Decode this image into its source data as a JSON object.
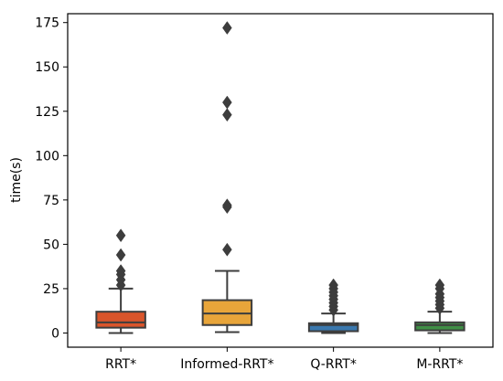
{
  "chart_data": {
    "type": "box",
    "title": "",
    "xlabel": "",
    "ylabel": "time(s)",
    "ylim": [
      -8,
      180
    ],
    "yticks": [
      0,
      25,
      50,
      75,
      100,
      125,
      150,
      175
    ],
    "grid": false,
    "legend": "none",
    "categories": [
      "RRT*",
      "Informed-RRT*",
      "Q-RRT*",
      "M-RRT*"
    ],
    "boxes": [
      {
        "category": "RRT*",
        "color": "#d9552b",
        "whisker_low": 0,
        "q1": 3,
        "median": 6,
        "q3": 12,
        "whisker_high": 25,
        "outliers": [
          27,
          30,
          33,
          35,
          44,
          55
        ]
      },
      {
        "category": "Informed-RRT*",
        "color": "#e8a53a",
        "whisker_low": 0.5,
        "q1": 4.5,
        "median": 11,
        "q3": 18.5,
        "whisker_high": 35,
        "outliers": [
          47,
          71,
          72,
          123,
          130,
          172
        ]
      },
      {
        "category": "Q-RRT*",
        "color": "#3a78ae",
        "whisker_low": 0,
        "q1": 1,
        "median": 4.5,
        "q3": 5.5,
        "whisker_high": 11,
        "outliers": [
          13,
          15,
          17,
          19,
          21,
          23,
          25,
          27
        ]
      },
      {
        "category": "M-RRT*",
        "color": "#3f8f45",
        "whisker_low": 0,
        "q1": 1.5,
        "median": 4.5,
        "q3": 6,
        "whisker_high": 12,
        "outliers": [
          14,
          16,
          18,
          20,
          22,
          25,
          27
        ]
      }
    ]
  }
}
